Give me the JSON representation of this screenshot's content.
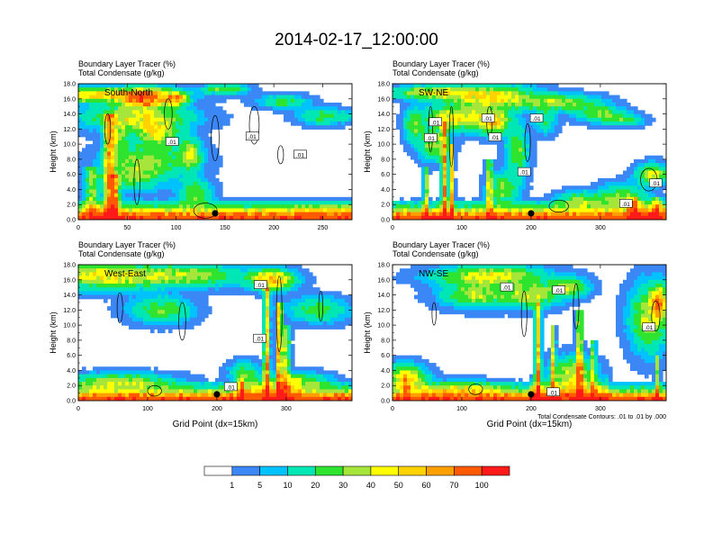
{
  "title": "2014-02-17_12:00:00",
  "chart_data": {
    "type": "heatmap",
    "panels": [
      {
        "id": "sn",
        "header": [
          "Boundary Layer Tracer   (%)",
          "Total Condensate   (g/kg)"
        ],
        "label": "South-North",
        "ylabel": "Height (km)",
        "xlabel": "",
        "ylim": [
          0,
          18
        ],
        "xlim": [
          0,
          280
        ],
        "yticks": [
          "0.0",
          "2.0",
          "4.0",
          "6.0",
          "8.0",
          "10.0",
          "12.0",
          "14.0",
          "16.0",
          "18.0"
        ],
        "xticks": [
          0,
          50,
          100,
          150,
          200,
          250
        ],
        "contour_labels": [
          ".01",
          ".01",
          ".01"
        ],
        "site_marker_x": 140
      },
      {
        "id": "swne",
        "header": [
          "Boundary Layer Tracer   (%)",
          "Total Condensate   (g/kg)"
        ],
        "label": "SW-NE",
        "ylabel": "Height (km)",
        "xlabel": "",
        "ylim": [
          0,
          18
        ],
        "xlim": [
          0,
          395
        ],
        "yticks": [
          "0.0",
          "2.0",
          "4.0",
          "6.0",
          "8.0",
          "10.0",
          "12.0",
          "14.0",
          "16.0",
          "18.0"
        ],
        "xticks": [
          0,
          100,
          200,
          300
        ],
        "contour_labels": [
          ".01",
          ".01",
          ".01",
          ".01",
          ".01",
          ".01",
          ".01",
          ".01"
        ],
        "site_marker_x": 200
      },
      {
        "id": "we",
        "header": [
          "Boundary Layer Tracer   (%)",
          "Total Condensate   (g/kg)"
        ],
        "label": "West-East",
        "ylabel": "Height (km)",
        "xlabel": "Grid Point (dx=15km)",
        "ylim": [
          0,
          18
        ],
        "xlim": [
          0,
          395
        ],
        "yticks": [
          "0.0",
          "2.0",
          "4.0",
          "6.0",
          "8.0",
          "10.0",
          "12.0",
          "14.0",
          "16.0",
          "18.0"
        ],
        "xticks": [
          0,
          100,
          200,
          300
        ],
        "contour_labels": [
          ".01",
          ".01",
          ".01"
        ],
        "site_marker_x": 200
      },
      {
        "id": "nwse",
        "header": [
          "Boundary Layer Tracer   (%)",
          "Total Condensate   (g/kg)"
        ],
        "label": "NW-SE",
        "ylabel": "Height (km)",
        "xlabel": "Grid Point (dx=15km)",
        "ylim": [
          0,
          18
        ],
        "xlim": [
          0,
          395
        ],
        "yticks": [
          "0.0",
          "2.0",
          "4.0",
          "6.0",
          "8.0",
          "10.0",
          "12.0",
          "14.0",
          "16.0",
          "18.0"
        ],
        "xticks": [
          0,
          100,
          200,
          300
        ],
        "contour_labels": [
          ".01",
          ".01",
          ".01",
          ".01"
        ],
        "site_marker_x": 200
      }
    ],
    "contour_note": "Total Condensate Contours: .01 to .01 by .000",
    "colorbar": {
      "colors": [
        "#ffffff",
        "#3b87f6",
        "#00c2ff",
        "#00e6b4",
        "#2ee42e",
        "#a6e63a",
        "#ffff00",
        "#ffd200",
        "#ffa000",
        "#ff5a00",
        "#ff1a1a"
      ],
      "labels": [
        "1",
        "5",
        "10",
        "20",
        "30",
        "40",
        "50",
        "60",
        "70",
        "100"
      ]
    },
    "field_model": {
      "sn": {
        "blobs": [
          [
            20,
            16.5,
            70,
            0.9,
            50
          ],
          [
            68,
            16,
            22,
            1.2,
            70
          ],
          [
            100,
            16,
            10,
            0.9,
            55
          ],
          [
            150,
            17.3,
            20,
            0.6,
            30
          ],
          [
            210,
            15.6,
            22,
            0.8,
            25
          ],
          [
            250,
            13.7,
            22,
            1,
            25
          ],
          [
            275,
            13.5,
            6,
            0.6,
            10
          ],
          [
            60,
            13.5,
            50,
            1.5,
            40
          ],
          [
            40,
            11,
            10,
            2,
            30
          ],
          [
            80,
            11.5,
            20,
            1.5,
            40
          ],
          [
            115,
            8.5,
            10,
            2,
            35
          ],
          [
            75,
            8,
            40,
            2.5,
            25
          ],
          [
            120,
            3.5,
            15,
            1.5,
            30
          ],
          [
            55,
            6,
            30,
            2,
            25
          ]
        ],
        "columns": [
          [
            32,
            5,
            14,
            75
          ],
          [
            38,
            4,
            6,
            60
          ],
          [
            14,
            7,
            7,
            40
          ]
        ],
        "surface_depth": 1.7,
        "surface_cut": null,
        "bump": [
          [
            220,
            280,
            2.8,
            15
          ]
        ],
        "contours": [
          [
            140,
            10.8,
            4,
            3
          ],
          [
            180,
            12.5,
            5,
            2.5
          ],
          [
            207,
            8.6,
            3,
            1.2
          ],
          [
            130,
            1.2,
            12,
            1
          ],
          [
            30,
            12,
            3,
            2
          ],
          [
            92,
            14,
            4,
            2
          ],
          [
            60,
            5,
            3,
            3
          ]
        ],
        "labels": [
          [
            96,
            10.3
          ],
          [
            178,
            11.0
          ],
          [
            227,
            8.6
          ]
        ]
      },
      "swne": {
        "blobs": [
          [
            60,
            16.8,
            55,
            0.8,
            45
          ],
          [
            145,
            16.2,
            55,
            1.4,
            50
          ],
          [
            240,
            15.5,
            50,
            1,
            35
          ],
          [
            300,
            14,
            30,
            1,
            30
          ],
          [
            335,
            13.2,
            25,
            0.7,
            25
          ],
          [
            90,
            13.5,
            40,
            1.5,
            45
          ],
          [
            145,
            13,
            25,
            1.5,
            50
          ],
          [
            60,
            10,
            20,
            2,
            35
          ],
          [
            30,
            12.5,
            12,
            2,
            30
          ],
          [
            180,
            9,
            15,
            3,
            30
          ],
          [
            220,
            13,
            15,
            1.5,
            20
          ],
          [
            375,
            6,
            20,
            1.2,
            45
          ],
          [
            330,
            3,
            30,
            1.5,
            35
          ],
          [
            270,
            2.6,
            30,
            1,
            30
          ],
          [
            160,
            4,
            20,
            2,
            30
          ]
        ],
        "columns": [
          [
            75,
            4,
            13,
            75
          ],
          [
            85,
            3,
            10,
            70
          ],
          [
            48,
            3,
            7,
            50
          ],
          [
            140,
            4,
            8,
            50
          ],
          [
            350,
            5,
            3,
            60
          ],
          [
            380,
            6,
            3,
            50
          ]
        ],
        "surface_depth": 1.6,
        "surface_cut": null,
        "bump": [
          [
            340,
            395,
            3.5,
            30
          ]
        ],
        "contours": [
          [
            55,
            12,
            3,
            3
          ],
          [
            85,
            11,
            3,
            4
          ],
          [
            140,
            13,
            4,
            2
          ],
          [
            195,
            10.2,
            4,
            2.5
          ],
          [
            370,
            5.3,
            12,
            1.5
          ],
          [
            240,
            1.8,
            14,
            0.8
          ]
        ],
        "labels": [
          [
            62,
            12.9
          ],
          [
            55,
            10.8
          ],
          [
            138,
            13.4
          ],
          [
            208,
            13.4
          ],
          [
            148,
            10.9
          ],
          [
            190,
            6.3
          ],
          [
            337,
            2.1
          ],
          [
            380,
            4.8
          ]
        ]
      },
      "we": {
        "blobs": [
          [
            40,
            16.5,
            90,
            1.6,
            45
          ],
          [
            170,
            16.5,
            70,
            1.3,
            30
          ],
          [
            280,
            16,
            30,
            1.2,
            60
          ],
          [
            345,
            12,
            40,
            1.5,
            25
          ],
          [
            120,
            12,
            40,
            1.5,
            30
          ],
          [
            60,
            2.5,
            70,
            1,
            35
          ],
          [
            320,
            2.6,
            40,
            1,
            30
          ],
          [
            240,
            3.5,
            20,
            1.5,
            25
          ]
        ],
        "columns": [
          [
            272,
            4,
            15,
            70
          ],
          [
            290,
            4,
            13,
            80
          ],
          [
            300,
            5,
            10,
            50
          ],
          [
            235,
            3,
            3,
            50
          ]
        ],
        "surface_depth": 1.5,
        "surface_cut": null,
        "bump": [
          [
            230,
            320,
            4,
            25
          ]
        ],
        "contours": [
          [
            60,
            12.3,
            4,
            2
          ],
          [
            150,
            10.5,
            5,
            2.5
          ],
          [
            290,
            11.5,
            4,
            5
          ],
          [
            350,
            12.5,
            3,
            2
          ],
          [
            110,
            1.3,
            10,
            0.7
          ]
        ],
        "labels": [
          [
            263,
            15.3
          ],
          [
            262,
            8.2
          ],
          [
            220,
            1.8
          ]
        ]
      },
      "nwse": {
        "blobs": [
          [
            140,
            16.5,
            70,
            1.2,
            45
          ],
          [
            120,
            14,
            45,
            1.5,
            35
          ],
          [
            200,
            14,
            35,
            1.5,
            40
          ],
          [
            255,
            15,
            25,
            1.2,
            35
          ],
          [
            370,
            11,
            25,
            4,
            40
          ],
          [
            385,
            13,
            10,
            2,
            55
          ],
          [
            20,
            3,
            25,
            1.5,
            55
          ],
          [
            100,
            1.5,
            60,
            1,
            30
          ],
          [
            260,
            3.5,
            30,
            2,
            40
          ]
        ],
        "columns": [
          [
            210,
            4,
            13,
            70
          ],
          [
            232,
            3,
            10,
            55
          ],
          [
            270,
            4,
            12,
            65
          ],
          [
            290,
            3,
            8,
            45
          ],
          [
            20,
            3,
            3,
            60
          ],
          [
            382,
            3,
            6,
            45
          ]
        ],
        "surface_depth": 1.4,
        "surface_cut": null,
        "bump": [
          [
            200,
            310,
            3.5,
            30
          ]
        ],
        "contours": [
          [
            190,
            11.5,
            4,
            3
          ],
          [
            265,
            12.5,
            4,
            3
          ],
          [
            60,
            11.5,
            3,
            1.5
          ],
          [
            380,
            11.2,
            6,
            2
          ],
          [
            120,
            1.5,
            10,
            0.7
          ]
        ],
        "labels": [
          [
            165,
            15.0
          ],
          [
            240,
            14.6
          ],
          [
            370,
            9.7
          ],
          [
            232,
            1.1
          ]
        ]
      }
    }
  }
}
